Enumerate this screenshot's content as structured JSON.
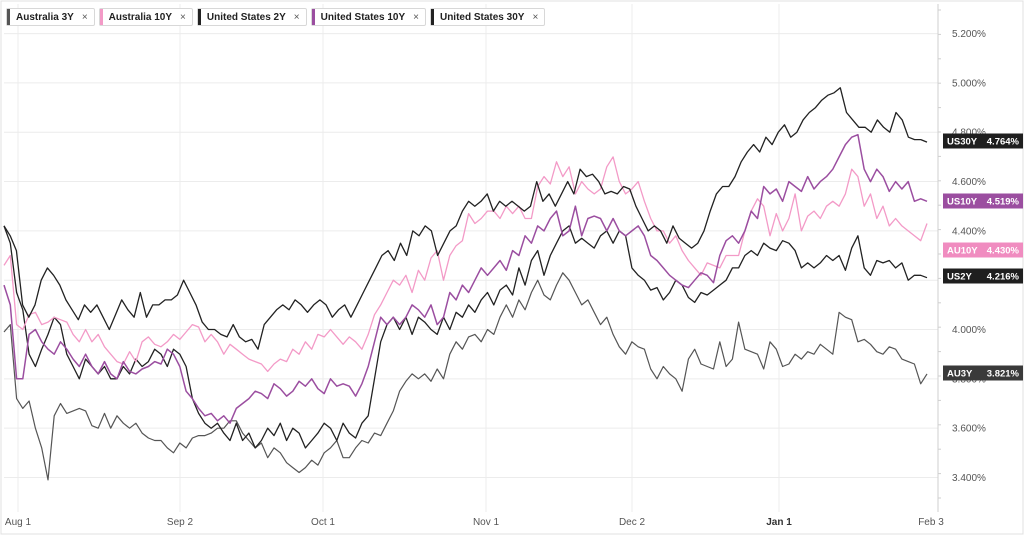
{
  "legend": [
    {
      "label": "Australia 3Y",
      "color": "#555555"
    },
    {
      "label": "Australia 10Y",
      "color": "#f39ac7"
    },
    {
      "label": "United States 2Y",
      "color": "#222222"
    },
    {
      "label": "United States 10Y",
      "color": "#9b4ea0"
    },
    {
      "label": "United States 30Y",
      "color": "#222222"
    }
  ],
  "close_symbol": "×",
  "chart_data": {
    "type": "line",
    "x_ticks": [
      "Aug 1",
      "Sep 2",
      "Oct 1",
      "Nov 1",
      "Dec 2",
      "Jan 1",
      "Feb 3"
    ],
    "y_ticks": [
      "3.400%",
      "3.600%",
      "3.800%",
      "4.000%",
      "4.200%",
      "4.400%",
      "4.600%",
      "4.800%",
      "5.000%",
      "5.200%"
    ],
    "ylim": [
      3.26,
      5.32
    ],
    "grid": true,
    "series": [
      {
        "name": "Australia 3Y",
        "tag": "AU3Y",
        "last_label": "3.821%",
        "color": "#555555",
        "width": 1.2,
        "values": [
          3.99,
          4.02,
          3.72,
          3.68,
          3.71,
          3.6,
          3.52,
          3.39,
          3.65,
          3.7,
          3.66,
          3.67,
          3.68,
          3.67,
          3.61,
          3.6,
          3.66,
          3.6,
          3.65,
          3.62,
          3.6,
          3.62,
          3.58,
          3.56,
          3.55,
          3.55,
          3.52,
          3.5,
          3.54,
          3.52,
          3.56,
          3.57,
          3.57,
          3.58,
          3.6,
          3.6,
          3.63,
          3.63,
          3.58,
          3.55,
          3.52,
          3.54,
          3.48,
          3.52,
          3.5,
          3.46,
          3.44,
          3.42,
          3.44,
          3.47,
          3.45,
          3.5,
          3.52,
          3.55,
          3.48,
          3.48,
          3.52,
          3.55,
          3.54,
          3.58,
          3.57,
          3.62,
          3.67,
          3.75,
          3.79,
          3.82,
          3.8,
          3.82,
          3.79,
          3.84,
          3.8,
          3.9,
          3.95,
          3.92,
          3.97,
          3.98,
          3.95,
          4.0,
          3.98,
          4.05,
          4.1,
          4.05,
          4.12,
          4.08,
          4.15,
          4.2,
          4.14,
          4.12,
          4.18,
          4.23,
          4.2,
          4.15,
          4.1,
          4.12,
          4.07,
          4.02,
          4.05,
          3.98,
          3.93,
          3.9,
          3.95,
          3.93,
          3.92,
          3.84,
          3.8,
          3.85,
          3.82,
          3.8,
          3.75,
          3.88,
          3.92,
          3.86,
          3.85,
          3.84,
          3.95,
          3.85,
          3.88,
          4.03,
          3.92,
          3.91,
          3.9,
          3.84,
          3.95,
          3.92,
          3.85,
          3.86,
          3.9,
          3.88,
          3.91,
          3.9,
          3.94,
          3.92,
          3.9,
          4.07,
          4.05,
          4.04,
          3.95,
          3.96,
          3.94,
          3.91,
          3.9,
          3.93,
          3.92,
          3.88,
          3.87,
          3.86,
          3.78,
          3.82
        ]
      },
      {
        "name": "Australia 10Y",
        "tag": "AU10Y",
        "last_label": "4.430%",
        "color": "#f39ac7",
        "width": 1.3,
        "values": [
          4.26,
          4.3,
          4.02,
          4.0,
          4.06,
          4.07,
          4.02,
          4.03,
          4.05,
          4.04,
          4.03,
          3.98,
          3.95,
          4.0,
          3.95,
          3.98,
          3.93,
          3.9,
          3.87,
          3.86,
          3.91,
          3.87,
          3.95,
          3.97,
          3.94,
          3.93,
          3.95,
          3.98,
          3.96,
          3.99,
          4.02,
          4.01,
          3.95,
          3.98,
          3.95,
          3.9,
          3.94,
          3.92,
          3.9,
          3.88,
          3.87,
          3.86,
          3.83,
          3.86,
          3.88,
          3.87,
          3.92,
          3.9,
          3.95,
          3.92,
          3.98,
          3.97,
          4.0,
          3.97,
          3.94,
          3.97,
          3.95,
          3.92,
          3.98,
          4.06,
          4.1,
          4.15,
          4.2,
          4.18,
          4.22,
          4.15,
          4.24,
          4.2,
          4.29,
          4.32,
          4.2,
          4.3,
          4.34,
          4.36,
          4.47,
          4.43,
          4.45,
          4.48,
          4.48,
          4.45,
          4.5,
          4.47,
          4.5,
          4.45,
          4.45,
          4.58,
          4.62,
          4.59,
          4.68,
          4.62,
          4.66,
          4.55,
          4.6,
          4.57,
          4.55,
          4.57,
          4.66,
          4.7,
          4.6,
          4.55,
          4.57,
          4.6,
          4.52,
          4.45,
          4.4,
          4.4,
          4.35,
          4.38,
          4.32,
          4.28,
          4.25,
          4.22,
          4.27,
          4.26,
          4.25,
          4.3,
          4.3,
          4.3,
          4.4,
          4.48,
          4.53,
          4.5,
          4.38,
          4.47,
          4.4,
          4.45,
          4.55,
          4.4,
          4.46,
          4.48,
          4.45,
          4.5,
          4.52,
          4.5,
          4.55,
          4.65,
          4.62,
          4.5,
          4.55,
          4.45,
          4.5,
          4.42,
          4.45,
          4.42,
          4.4,
          4.38,
          4.36,
          4.43
        ]
      },
      {
        "name": "United States 2Y",
        "tag": "US2Y",
        "last_label": "4.216%",
        "color": "#222222",
        "width": 1.3,
        "values": [
          4.42,
          4.35,
          4.15,
          4.08,
          3.9,
          3.85,
          3.92,
          3.98,
          4.05,
          4.02,
          3.9,
          3.85,
          3.8,
          3.88,
          3.85,
          3.82,
          3.85,
          3.8,
          3.8,
          3.85,
          3.82,
          3.88,
          3.85,
          3.87,
          3.92,
          3.9,
          3.85,
          3.92,
          3.9,
          3.85,
          3.72,
          3.66,
          3.62,
          3.6,
          3.62,
          3.58,
          3.55,
          3.62,
          3.55,
          3.58,
          3.52,
          3.55,
          3.6,
          3.57,
          3.62,
          3.55,
          3.6,
          3.58,
          3.52,
          3.55,
          3.58,
          3.62,
          3.6,
          3.55,
          3.62,
          3.58,
          3.56,
          3.62,
          3.65,
          3.8,
          3.95,
          4.02,
          4.05,
          4.0,
          4.05,
          3.98,
          4.05,
          4.03,
          4.0,
          3.98,
          4.05,
          4.0,
          4.07,
          4.05,
          4.1,
          4.07,
          4.12,
          4.15,
          4.1,
          4.16,
          4.18,
          4.14,
          4.25,
          4.18,
          4.28,
          4.32,
          4.22,
          4.3,
          4.35,
          4.4,
          4.42,
          4.35,
          4.37,
          4.35,
          4.33,
          4.38,
          4.4,
          4.35,
          4.4,
          4.38,
          4.25,
          4.22,
          4.2,
          4.16,
          4.17,
          4.12,
          4.15,
          4.2,
          4.18,
          4.13,
          4.11,
          4.15,
          4.14,
          4.16,
          4.18,
          4.2,
          4.25,
          4.25,
          4.3,
          4.32,
          4.3,
          4.35,
          4.33,
          4.32,
          4.36,
          4.35,
          4.32,
          4.25,
          4.27,
          4.25,
          4.27,
          4.3,
          4.28,
          4.3,
          4.24,
          4.33,
          4.38,
          4.25,
          4.22,
          4.28,
          4.27,
          4.28,
          4.25,
          4.27,
          4.2,
          4.22,
          4.22,
          4.21
        ]
      },
      {
        "name": "United States 10Y",
        "tag": "US10Y",
        "last_label": "4.519%",
        "color": "#9b4ea0",
        "width": 1.5,
        "values": [
          4.18,
          4.1,
          3.8,
          3.8,
          3.98,
          4.0,
          3.95,
          3.92,
          3.9,
          3.95,
          3.92,
          3.88,
          3.85,
          3.9,
          3.85,
          3.82,
          3.87,
          3.82,
          3.8,
          3.87,
          3.83,
          3.82,
          3.84,
          3.85,
          3.87,
          3.86,
          3.92,
          3.9,
          3.85,
          3.75,
          3.72,
          3.68,
          3.65,
          3.66,
          3.63,
          3.65,
          3.62,
          3.68,
          3.7,
          3.72,
          3.75,
          3.74,
          3.72,
          3.78,
          3.76,
          3.73,
          3.75,
          3.79,
          3.77,
          3.8,
          3.76,
          3.74,
          3.8,
          3.77,
          3.78,
          3.77,
          3.73,
          3.78,
          3.85,
          3.95,
          4.05,
          4.02,
          4.05,
          4.02,
          4.05,
          4.1,
          4.08,
          4.05,
          4.1,
          4.02,
          4.05,
          4.15,
          4.12,
          4.18,
          4.15,
          4.2,
          4.25,
          4.22,
          4.25,
          4.28,
          4.24,
          4.32,
          4.3,
          4.38,
          4.35,
          4.42,
          4.4,
          4.45,
          4.48,
          4.38,
          4.4,
          4.5,
          4.38,
          4.45,
          4.46,
          4.45,
          4.4,
          4.45,
          4.4,
          4.38,
          4.4,
          4.42,
          4.38,
          4.3,
          4.28,
          4.25,
          4.22,
          4.2,
          4.18,
          4.17,
          4.2,
          4.23,
          4.22,
          4.19,
          4.3,
          4.36,
          4.38,
          4.35,
          4.4,
          4.48,
          4.45,
          4.58,
          4.55,
          4.57,
          4.52,
          4.6,
          4.58,
          4.56,
          4.62,
          4.57,
          4.6,
          4.62,
          4.65,
          4.7,
          4.75,
          4.78,
          4.79,
          4.65,
          4.6,
          4.65,
          4.62,
          4.56,
          4.6,
          4.57,
          4.6,
          4.52,
          4.53,
          4.52
        ]
      },
      {
        "name": "United States 30Y",
        "tag": "US30Y",
        "last_label": "4.764%",
        "color": "#222222",
        "width": 1.3,
        "values": [
          4.42,
          4.38,
          4.32,
          4.1,
          4.05,
          4.1,
          4.2,
          4.25,
          4.22,
          4.18,
          4.12,
          4.08,
          4.04,
          4.1,
          4.07,
          4.1,
          4.05,
          4.0,
          4.06,
          4.12,
          4.08,
          4.05,
          4.15,
          4.05,
          4.1,
          4.1,
          4.12,
          4.12,
          4.14,
          4.2,
          4.15,
          4.1,
          4.03,
          4.0,
          4.0,
          3.98,
          3.97,
          4.02,
          3.97,
          3.95,
          3.96,
          3.92,
          4.02,
          4.05,
          4.08,
          4.1,
          4.08,
          4.12,
          4.1,
          4.07,
          4.1,
          4.12,
          4.1,
          4.05,
          4.08,
          4.1,
          4.05,
          4.1,
          4.15,
          4.2,
          4.25,
          4.3,
          4.32,
          4.28,
          4.35,
          4.3,
          4.4,
          4.38,
          4.42,
          4.4,
          4.3,
          4.35,
          4.4,
          4.42,
          4.48,
          4.52,
          4.5,
          4.52,
          4.55,
          4.48,
          4.52,
          4.5,
          4.52,
          4.5,
          4.48,
          4.5,
          4.6,
          4.52,
          4.55,
          4.5,
          4.55,
          4.6,
          4.55,
          4.65,
          4.62,
          4.63,
          4.6,
          4.55,
          4.56,
          4.55,
          4.58,
          4.57,
          4.5,
          4.45,
          4.4,
          4.42,
          4.4,
          4.35,
          4.42,
          4.37,
          4.35,
          4.33,
          4.35,
          4.4,
          4.48,
          4.55,
          4.58,
          4.58,
          4.62,
          4.68,
          4.72,
          4.75,
          4.72,
          4.78,
          4.75,
          4.8,
          4.83,
          4.78,
          4.8,
          4.85,
          4.88,
          4.9,
          4.93,
          4.95,
          4.96,
          4.98,
          4.88,
          4.85,
          4.82,
          4.82,
          4.8,
          4.85,
          4.82,
          4.8,
          4.88,
          4.85,
          4.78,
          4.77,
          4.77,
          4.76
        ]
      }
    ]
  }
}
